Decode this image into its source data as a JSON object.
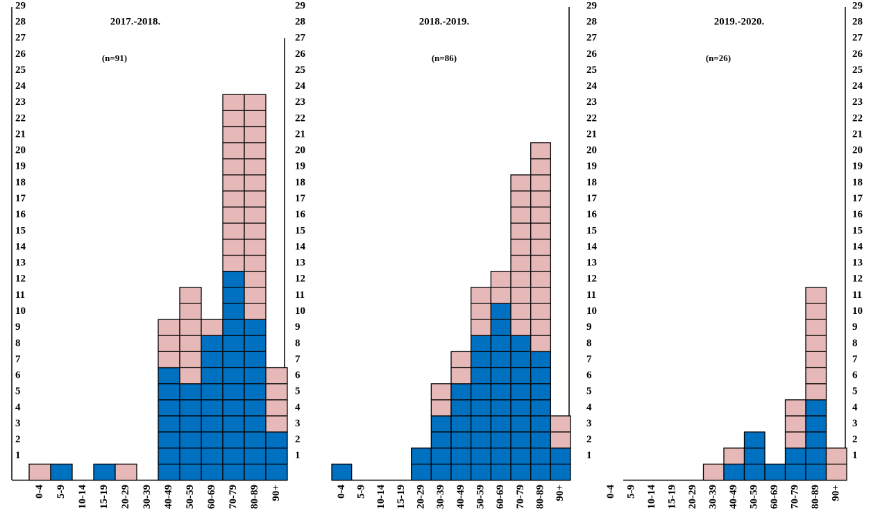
{
  "chart_data": [
    {
      "type": "bar",
      "stacked": true,
      "title": "2017.-2018.",
      "subtitle": "(n=91)",
      "categories": [
        "0-4",
        "5-9",
        "10-14",
        "15-19",
        "20-29",
        "30-39",
        "40-49",
        "50-59",
        "60-69",
        "70-79",
        "80-89",
        "90+"
      ],
      "series": [
        {
          "color": "#0070c0",
          "values": [
            0,
            1,
            0,
            1,
            0,
            0,
            7,
            6,
            9,
            13,
            10,
            3
          ]
        },
        {
          "color": "#e6b9b8",
          "values": [
            1,
            0,
            0,
            0,
            1,
            0,
            3,
            6,
            1,
            11,
            14,
            4
          ]
        }
      ],
      "ylim": [
        0,
        29
      ],
      "yticks": [
        1,
        2,
        3,
        4,
        5,
        6,
        7,
        8,
        9,
        10,
        11,
        12,
        13,
        14,
        15,
        16,
        17,
        18,
        19,
        20,
        21,
        22,
        23,
        24,
        25,
        26,
        27,
        28,
        29
      ]
    },
    {
      "type": "bar",
      "stacked": true,
      "title": "2018.-2019.",
      "subtitle": "(n=86)",
      "categories": [
        "0-4",
        "5-9",
        "10-14",
        "15-19",
        "20-29",
        "30-39",
        "40-49",
        "50-59",
        "60-69",
        "70-79",
        "80-89",
        "90+"
      ],
      "series": [
        {
          "color": "#0070c0",
          "values": [
            1,
            0,
            0,
            0,
            2,
            4,
            6,
            9,
            11,
            9,
            8,
            2
          ]
        },
        {
          "color": "#e6b9b8",
          "values": [
            0,
            0,
            0,
            0,
            0,
            2,
            2,
            3,
            2,
            10,
            13,
            2
          ]
        }
      ],
      "ylim": [
        0,
        29
      ],
      "yticks": [
        1,
        2,
        3,
        4,
        5,
        6,
        7,
        8,
        9,
        10,
        11,
        12,
        13,
        14,
        15,
        16,
        17,
        18,
        19,
        20,
        21,
        22,
        23,
        24,
        25,
        26,
        27,
        28,
        29
      ]
    },
    {
      "type": "bar",
      "stacked": true,
      "title": "2019.-2020.",
      "subtitle": "(n=26)",
      "categories": [
        "0-4",
        "5-9",
        "10-14",
        "15-19",
        "20-29",
        "30-39",
        "40-49",
        "50-59",
        "60-69",
        "70-79",
        "80-89",
        "90+"
      ],
      "series": [
        {
          "color": "#0070c0",
          "values": [
            0,
            0,
            0,
            0,
            0,
            0,
            1,
            3,
            1,
            2,
            5,
            0
          ]
        },
        {
          "color": "#e6b9b8",
          "values": [
            0,
            0,
            0,
            0,
            0,
            1,
            1,
            0,
            0,
            3,
            7,
            2
          ]
        }
      ],
      "ylim": [
        0,
        29
      ],
      "yticks": [
        1,
        2,
        3,
        4,
        5,
        6,
        7,
        8,
        9,
        10,
        11,
        12,
        13,
        14,
        15,
        16,
        17,
        18,
        19,
        20,
        21,
        22,
        23,
        24,
        25,
        26,
        27,
        28,
        29
      ],
      "y2lim": [
        0,
        29
      ],
      "y2ticks": [
        1,
        2,
        3,
        4,
        5,
        6,
        7,
        8,
        9,
        10,
        11,
        12,
        13,
        14,
        15,
        16,
        17,
        18,
        19,
        20,
        21,
        22,
        23,
        24,
        25,
        26,
        27,
        28,
        29
      ]
    }
  ]
}
